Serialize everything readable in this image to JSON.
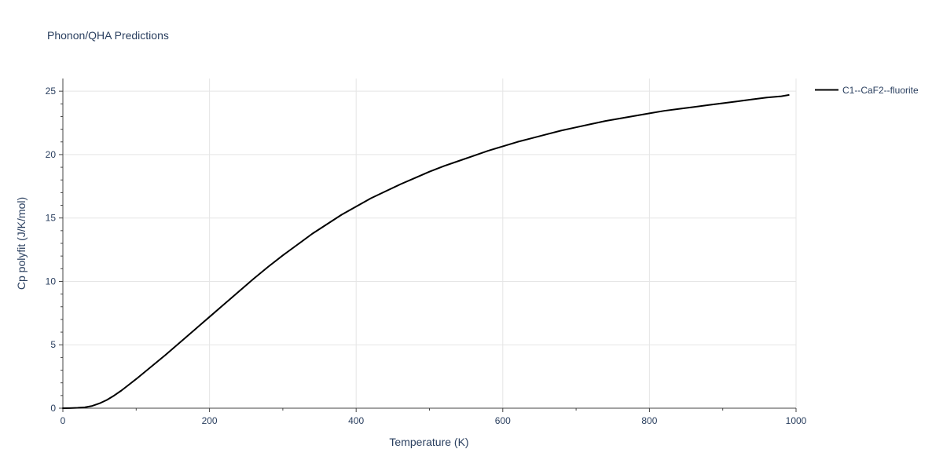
{
  "chart_data": {
    "type": "line",
    "title": "Phonon/QHA Predictions",
    "xlabel": "Temperature (K)",
    "ylabel": "Cp polyfit (J/K/mol)",
    "xlim": [
      0,
      1000
    ],
    "ylim": [
      0,
      26
    ],
    "x_ticks": [
      0,
      200,
      400,
      600,
      800,
      1000
    ],
    "y_ticks": [
      0,
      5,
      10,
      15,
      20,
      25
    ],
    "grid": true,
    "legend_position": "top-right-outside",
    "series": [
      {
        "name": "C1--CaF2--fluorite",
        "color": "#000000",
        "x": [
          0,
          10,
          20,
          30,
          40,
          50,
          60,
          70,
          80,
          90,
          100,
          120,
          140,
          160,
          180,
          200,
          220,
          240,
          260,
          280,
          300,
          320,
          340,
          360,
          380,
          400,
          420,
          440,
          460,
          480,
          500,
          520,
          540,
          560,
          580,
          600,
          620,
          640,
          660,
          680,
          700,
          720,
          740,
          760,
          780,
          800,
          820,
          840,
          860,
          880,
          900,
          920,
          940,
          960,
          980,
          990
        ],
        "y": [
          0,
          0.01,
          0.03,
          0.07,
          0.18,
          0.38,
          0.65,
          1.0,
          1.4,
          1.85,
          2.3,
          3.25,
          4.2,
          5.2,
          6.2,
          7.2,
          8.2,
          9.2,
          10.2,
          11.15,
          12.05,
          12.9,
          13.75,
          14.5,
          15.25,
          15.9,
          16.55,
          17.1,
          17.65,
          18.15,
          18.65,
          19.1,
          19.5,
          19.9,
          20.3,
          20.65,
          21.0,
          21.3,
          21.6,
          21.9,
          22.15,
          22.4,
          22.65,
          22.85,
          23.05,
          23.25,
          23.45,
          23.6,
          23.75,
          23.9,
          24.05,
          24.2,
          24.35,
          24.5,
          24.6,
          24.7
        ]
      }
    ]
  }
}
